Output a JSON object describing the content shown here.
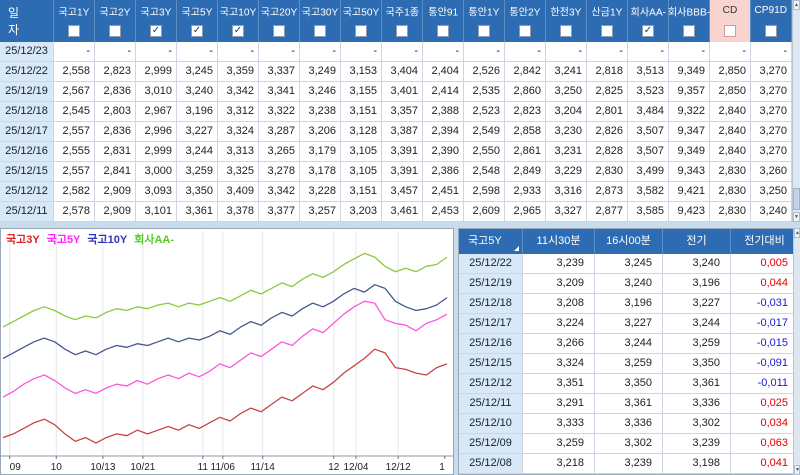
{
  "top_table": {
    "date_header": "일 자",
    "columns": [
      {
        "label": "국고1Y",
        "checked": false
      },
      {
        "label": "국고2Y",
        "checked": false
      },
      {
        "label": "국고3Y",
        "checked": true
      },
      {
        "label": "국고5Y",
        "checked": true
      },
      {
        "label": "국고10Y",
        "checked": true
      },
      {
        "label": "국고20Y",
        "checked": false
      },
      {
        "label": "국고30Y",
        "checked": false
      },
      {
        "label": "국고50Y",
        "checked": false
      },
      {
        "label": "국주1종",
        "checked": false
      },
      {
        "label": "통안91",
        "checked": false
      },
      {
        "label": "통안1Y",
        "checked": false
      },
      {
        "label": "통안2Y",
        "checked": false
      },
      {
        "label": "한전3Y",
        "checked": false
      },
      {
        "label": "산금1Y",
        "checked": false
      },
      {
        "label": "회사AA-",
        "checked": true
      },
      {
        "label": "회사BBB-",
        "checked": false
      },
      {
        "label": "CD",
        "checked": false,
        "highlight": true
      },
      {
        "label": "CP91D",
        "checked": false
      }
    ],
    "rows": [
      {
        "date": "25/12/23",
        "values": [
          "-",
          "-",
          "-",
          "-",
          "-",
          "-",
          "-",
          "-",
          "-",
          "-",
          "-",
          "-",
          "-",
          "-",
          "-",
          "-",
          "-",
          "-"
        ]
      },
      {
        "date": "25/12/22",
        "values": [
          "2,558",
          "2,823",
          "2,999",
          "3,245",
          "3,359",
          "3,337",
          "3,249",
          "3,153",
          "3,404",
          "2,404",
          "2,526",
          "2,842",
          "3,241",
          "2,818",
          "3,513",
          "9,349",
          "2,850",
          "3,270"
        ]
      },
      {
        "date": "25/12/19",
        "values": [
          "2,567",
          "2,836",
          "3,010",
          "3,240",
          "3,342",
          "3,341",
          "3,246",
          "3,155",
          "3,401",
          "2,414",
          "2,535",
          "2,860",
          "3,250",
          "2,825",
          "3,523",
          "9,357",
          "2,850",
          "3,270"
        ]
      },
      {
        "date": "25/12/18",
        "values": [
          "2,545",
          "2,803",
          "2,967",
          "3,196",
          "3,312",
          "3,322",
          "3,238",
          "3,151",
          "3,357",
          "2,388",
          "2,523",
          "2,823",
          "3,204",
          "2,801",
          "3,484",
          "9,322",
          "2,840",
          "3,270"
        ]
      },
      {
        "date": "25/12/17",
        "values": [
          "2,557",
          "2,836",
          "2,996",
          "3,227",
          "3,324",
          "3,287",
          "3,206",
          "3,128",
          "3,387",
          "2,394",
          "2,549",
          "2,858",
          "3,230",
          "2,826",
          "3,507",
          "9,347",
          "2,840",
          "3,270"
        ]
      },
      {
        "date": "25/12/16",
        "values": [
          "2,555",
          "2,831",
          "2,999",
          "3,244",
          "3,313",
          "3,265",
          "3,179",
          "3,105",
          "3,391",
          "2,390",
          "2,550",
          "2,861",
          "3,231",
          "2,828",
          "3,507",
          "9,349",
          "2,840",
          "3,270"
        ]
      },
      {
        "date": "25/12/15",
        "values": [
          "2,557",
          "2,841",
          "3,000",
          "3,259",
          "3,325",
          "3,278",
          "3,178",
          "3,105",
          "3,391",
          "2,386",
          "2,548",
          "2,849",
          "3,229",
          "2,830",
          "3,499",
          "9,343",
          "2,830",
          "3,260"
        ]
      },
      {
        "date": "25/12/12",
        "values": [
          "2,582",
          "2,909",
          "3,093",
          "3,350",
          "3,409",
          "3,342",
          "3,228",
          "3,151",
          "3,457",
          "2,451",
          "2,598",
          "2,933",
          "3,316",
          "2,873",
          "3,582",
          "9,421",
          "2,830",
          "3,250"
        ]
      },
      {
        "date": "25/12/11",
        "values": [
          "2,578",
          "2,909",
          "3,101",
          "3,361",
          "3,378",
          "3,377",
          "3,257",
          "3,203",
          "3,461",
          "2,453",
          "2,609",
          "2,965",
          "3,327",
          "2,877",
          "3,585",
          "9,423",
          "2,830",
          "3,240"
        ]
      }
    ]
  },
  "right_table": {
    "columns": [
      "국고5Y",
      "11시30분",
      "16시00분",
      "전기",
      "전기대비"
    ],
    "rows": [
      {
        "date": "25/12/22",
        "t1130": "3,239",
        "t1600": "3,245",
        "prev": "3,240",
        "chg": "0,005",
        "dir": "up"
      },
      {
        "date": "25/12/19",
        "t1130": "3,209",
        "t1600": "3,240",
        "prev": "3,196",
        "chg": "0,044",
        "dir": "up"
      },
      {
        "date": "25/12/18",
        "t1130": "3,208",
        "t1600": "3,196",
        "prev": "3,227",
        "chg": "-0,031",
        "dir": "down"
      },
      {
        "date": "25/12/17",
        "t1130": "3,224",
        "t1600": "3,227",
        "prev": "3,244",
        "chg": "-0,017",
        "dir": "down"
      },
      {
        "date": "25/12/16",
        "t1130": "3,266",
        "t1600": "3,244",
        "prev": "3,259",
        "chg": "-0,015",
        "dir": "down"
      },
      {
        "date": "25/12/15",
        "t1130": "3,324",
        "t1600": "3,259",
        "prev": "3,350",
        "chg": "-0,091",
        "dir": "down"
      },
      {
        "date": "25/12/12",
        "t1130": "3,351",
        "t1600": "3,350",
        "prev": "3,361",
        "chg": "-0,011",
        "dir": "down"
      },
      {
        "date": "25/12/11",
        "t1130": "3,291",
        "t1600": "3,361",
        "prev": "3,336",
        "chg": "0,025",
        "dir": "up"
      },
      {
        "date": "25/12/10",
        "t1130": "3,333",
        "t1600": "3,336",
        "prev": "3,302",
        "chg": "0,034",
        "dir": "up"
      },
      {
        "date": "25/12/09",
        "t1130": "3,259",
        "t1600": "3,302",
        "prev": "3,239",
        "chg": "0,063",
        "dir": "up"
      },
      {
        "date": "25/12/08",
        "t1130": "3,218",
        "t1600": "3,239",
        "prev": "3,198",
        "chg": "0,041",
        "dir": "up"
      }
    ]
  },
  "chart_data": {
    "type": "line",
    "title": "",
    "ylim": [
      2.52,
      3.72
    ],
    "grid": "vertical",
    "legend_position": "top-left",
    "x_ticks": [
      {
        "label": "09",
        "x": 0.015
      },
      {
        "label": "10",
        "x": 0.12
      },
      {
        "label": "10/13",
        "x": 0.225
      },
      {
        "label": "10/21",
        "x": 0.315
      },
      {
        "label": "11",
        "x": 0.45
      },
      {
        "label": "11/06",
        "x": 0.495
      },
      {
        "label": "11/14",
        "x": 0.585
      },
      {
        "label": "12",
        "x": 0.745
      },
      {
        "label": "12/04",
        "x": 0.795
      },
      {
        "label": "12/12",
        "x": 0.89
      },
      {
        "label": "1",
        "x": 0.995
      }
    ],
    "series": [
      {
        "name": "국고3Y",
        "color": "#c64444",
        "legend_color": "#dd2222",
        "values": [
          2.62,
          2.64,
          2.67,
          2.7,
          2.72,
          2.69,
          2.64,
          2.6,
          2.62,
          2.59,
          2.62,
          2.64,
          2.63,
          2.66,
          2.64,
          2.66,
          2.68,
          2.66,
          2.69,
          2.67,
          2.7,
          2.73,
          2.71,
          2.75,
          2.78,
          2.76,
          2.8,
          2.84,
          2.82,
          2.86,
          2.9,
          2.88,
          2.92,
          2.97,
          3.01,
          3.05,
          3.1,
          3.08,
          3.0,
          2.99,
          2.97,
          2.96,
          3.0,
          3.02
        ]
      },
      {
        "name": "국고5Y",
        "color": "#fc58dc",
        "legend_color": "#ff22ff",
        "values": [
          2.84,
          2.87,
          2.91,
          2.94,
          2.96,
          2.93,
          2.89,
          2.86,
          2.88,
          2.86,
          2.89,
          2.91,
          2.9,
          2.93,
          2.91,
          2.94,
          2.96,
          2.94,
          2.97,
          2.95,
          2.98,
          3.02,
          3.0,
          3.04,
          3.08,
          3.06,
          3.1,
          3.14,
          3.12,
          3.17,
          3.21,
          3.19,
          3.24,
          3.29,
          3.33,
          3.36,
          3.35,
          3.26,
          3.24,
          3.23,
          3.2,
          3.24,
          3.26,
          3.29
        ]
      },
      {
        "name": "국고10Y",
        "color": "#46568f",
        "legend_color": "#3333bb",
        "values": [
          3.05,
          3.08,
          3.11,
          3.14,
          3.16,
          3.14,
          3.1,
          3.07,
          3.09,
          3.07,
          3.1,
          3.12,
          3.11,
          3.13,
          3.12,
          3.14,
          3.16,
          3.14,
          3.16,
          3.15,
          3.17,
          3.2,
          3.18,
          3.22,
          3.25,
          3.23,
          3.27,
          3.3,
          3.28,
          3.32,
          3.35,
          3.33,
          3.36,
          3.4,
          3.43,
          3.41,
          3.45,
          3.43,
          3.36,
          3.33,
          3.31,
          3.32,
          3.34,
          3.38
        ]
      },
      {
        "name": "회사AA-",
        "color": "#8ec83c",
        "legend_color": "#55cc22",
        "values": [
          3.22,
          3.25,
          3.28,
          3.31,
          3.33,
          3.31,
          3.28,
          3.26,
          3.28,
          3.27,
          3.3,
          3.32,
          3.31,
          3.33,
          3.32,
          3.34,
          3.35,
          3.33,
          3.35,
          3.34,
          3.36,
          3.38,
          3.36,
          3.39,
          3.42,
          3.4,
          3.43,
          3.46,
          3.44,
          3.48,
          3.51,
          3.49,
          3.52,
          3.56,
          3.59,
          3.62,
          3.6,
          3.55,
          3.52,
          3.54,
          3.52,
          3.55,
          3.56,
          3.6
        ]
      }
    ]
  },
  "scrollbar": {
    "up_glyph": "▲",
    "down_glyph": "▼"
  },
  "colors": {
    "header_blue": "#2d6cb2",
    "cd_pink": "#f8d3d0",
    "date_cell": "#d9e8f7",
    "positive": "#e00000",
    "negative": "#1818cc",
    "grid": "#ccd6e3",
    "page_bg": "#c8dcee"
  }
}
